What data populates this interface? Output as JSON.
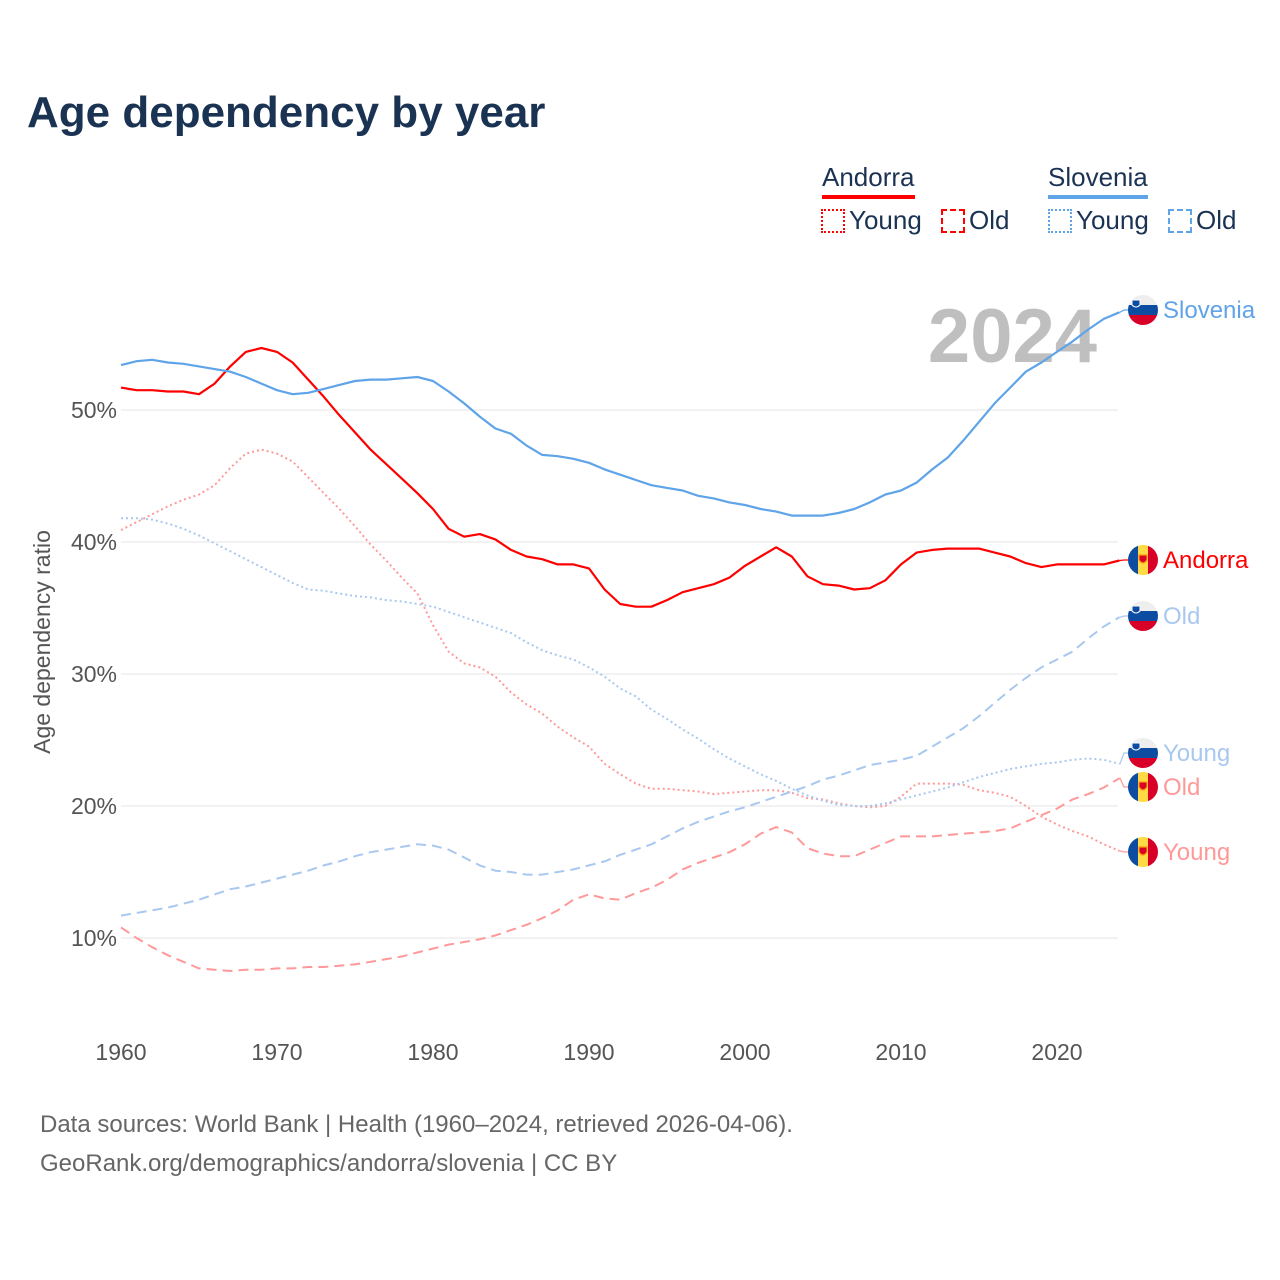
{
  "chart_data": {
    "type": "line",
    "title": "Age dependency by year",
    "xlabel": "",
    "ylabel": "Age dependency ratio",
    "xlim": [
      1960,
      2024
    ],
    "ylim": [
      4,
      58
    ],
    "yticks": [
      10,
      20,
      30,
      40,
      50
    ],
    "ytick_labels": [
      "10%",
      "20%",
      "30%",
      "40%",
      "50%"
    ],
    "xticks": [
      1960,
      1970,
      1980,
      1990,
      2000,
      2010,
      2020
    ],
    "xtick_labels": [
      "1960",
      "1970",
      "1980",
      "1990",
      "2000",
      "2010",
      "2020"
    ],
    "grid": "horizontal",
    "year_watermark": "2024",
    "legend": {
      "placement": "top-right",
      "groups": [
        {
          "country": "Andorra",
          "color": "#ff0000",
          "items": [
            {
              "label": "Young",
              "style": "dotted"
            },
            {
              "label": "Old",
              "style": "dashed"
            }
          ]
        },
        {
          "country": "Slovenia",
          "color": "#5fa4e8",
          "items": [
            {
              "label": "Young",
              "style": "dotted"
            },
            {
              "label": "Old",
              "style": "dashed"
            }
          ]
        }
      ]
    },
    "x_start": 1960,
    "series": [
      {
        "name": "Andorra",
        "end_label": "Andorra",
        "flag": "andorra",
        "color": "#ff0000",
        "style": "solid",
        "values": [
          51.7,
          51.5,
          51.5,
          51.4,
          51.4,
          51.2,
          52.0,
          53.3,
          54.4,
          54.7,
          54.4,
          53.6,
          52.3,
          51.0,
          49.6,
          48.3,
          47.0,
          45.9,
          44.8,
          43.7,
          42.5,
          41.0,
          40.4,
          40.6,
          40.2,
          39.4,
          38.9,
          38.7,
          38.3,
          38.3,
          38.0,
          36.4,
          35.3,
          35.1,
          35.1,
          35.6,
          36.2,
          36.5,
          36.8,
          37.3,
          38.2,
          38.9,
          39.6,
          38.9,
          37.4,
          36.8,
          36.7,
          36.4,
          36.5,
          37.1,
          38.3,
          39.2,
          39.4,
          39.5,
          39.5,
          39.5,
          39.2,
          38.9,
          38.4,
          38.1,
          38.3,
          38.3,
          38.3,
          38.3,
          38.6
        ]
      },
      {
        "name": "Slovenia",
        "end_label": "Slovenia",
        "flag": "slovenia",
        "color": "#5fa4e8",
        "style": "solid",
        "values": [
          53.4,
          53.7,
          53.8,
          53.6,
          53.5,
          53.3,
          53.1,
          52.9,
          52.5,
          52.0,
          51.5,
          51.2,
          51.3,
          51.6,
          51.9,
          52.2,
          52.3,
          52.3,
          52.4,
          52.5,
          52.2,
          51.4,
          50.5,
          49.5,
          48.6,
          48.2,
          47.3,
          46.6,
          46.5,
          46.3,
          46.0,
          45.5,
          45.1,
          44.7,
          44.3,
          44.1,
          43.9,
          43.5,
          43.3,
          43.0,
          42.8,
          42.5,
          42.3,
          42.0,
          42.0,
          42.0,
          42.2,
          42.5,
          43.0,
          43.6,
          43.9,
          44.5,
          45.5,
          46.4,
          47.7,
          49.1,
          50.5,
          51.7,
          52.9,
          53.6,
          54.4,
          55.2,
          56.1,
          56.9,
          57.4
        ]
      },
      {
        "name": "Andorra Young",
        "end_label": "Young",
        "flag": "andorra",
        "color": "#ff9999",
        "style": "dotted",
        "values": [
          40.9,
          41.5,
          42.1,
          42.7,
          43.2,
          43.6,
          44.3,
          45.6,
          46.7,
          47.0,
          46.7,
          46.1,
          44.9,
          43.7,
          42.5,
          41.2,
          39.8,
          38.6,
          37.3,
          36.1,
          33.7,
          31.7,
          30.8,
          30.5,
          29.8,
          28.6,
          27.7,
          27.0,
          26.0,
          25.2,
          24.5,
          23.2,
          22.4,
          21.7,
          21.3,
          21.3,
          21.2,
          21.1,
          20.9,
          21.0,
          21.1,
          21.2,
          21.2,
          21.0,
          20.6,
          20.5,
          20.2,
          20.0,
          19.9,
          20.0,
          20.7,
          21.7,
          21.7,
          21.7,
          21.6,
          21.2,
          21.0,
          20.7,
          20.0,
          19.2,
          18.6,
          18.1,
          17.7,
          17.1,
          16.6
        ]
      },
      {
        "name": "Andorra Old",
        "end_label": "Old",
        "flag": "andorra",
        "color": "#ff9999",
        "style": "dashed",
        "values": [
          10.8,
          10.0,
          9.3,
          8.7,
          8.2,
          7.7,
          7.6,
          7.5,
          7.6,
          7.6,
          7.7,
          7.7,
          7.8,
          7.8,
          7.9,
          8.0,
          8.2,
          8.4,
          8.6,
          8.9,
          9.2,
          9.5,
          9.7,
          9.9,
          10.2,
          10.6,
          11.0,
          11.5,
          12.1,
          12.9,
          13.3,
          13.0,
          12.9,
          13.4,
          13.8,
          14.4,
          15.2,
          15.7,
          16.1,
          16.5,
          17.1,
          17.9,
          18.4,
          18.0,
          16.8,
          16.4,
          16.2,
          16.2,
          16.7,
          17.2,
          17.7,
          17.7,
          17.7,
          17.8,
          17.9,
          18.0,
          18.1,
          18.3,
          18.8,
          19.3,
          19.8,
          20.5,
          20.9,
          21.4,
          22.1
        ]
      },
      {
        "name": "Slovenia Young",
        "end_label": "Young",
        "flag": "slovenia",
        "color": "#a8c8f0",
        "style": "dotted",
        "values": [
          41.8,
          41.8,
          41.7,
          41.4,
          41.0,
          40.5,
          39.9,
          39.3,
          38.7,
          38.1,
          37.5,
          36.9,
          36.4,
          36.3,
          36.1,
          35.9,
          35.8,
          35.6,
          35.5,
          35.3,
          35.1,
          34.7,
          34.3,
          33.9,
          33.5,
          33.1,
          32.4,
          31.8,
          31.4,
          31.1,
          30.5,
          29.8,
          28.9,
          28.3,
          27.3,
          26.6,
          25.8,
          25.1,
          24.3,
          23.6,
          23.0,
          22.4,
          21.9,
          21.3,
          20.8,
          20.4,
          20.1,
          20.0,
          20.0,
          20.2,
          20.5,
          20.8,
          21.1,
          21.4,
          21.8,
          22.2,
          22.5,
          22.8,
          23.0,
          23.2,
          23.3,
          23.5,
          23.6,
          23.5,
          23.2
        ]
      },
      {
        "name": "Slovenia Old",
        "end_label": "Old",
        "flag": "slovenia",
        "color": "#a8c8f0",
        "style": "dashed",
        "values": [
          11.7,
          11.9,
          12.1,
          12.3,
          12.6,
          12.9,
          13.3,
          13.7,
          13.9,
          14.2,
          14.5,
          14.8,
          15.1,
          15.5,
          15.8,
          16.2,
          16.5,
          16.7,
          16.9,
          17.1,
          17.0,
          16.7,
          16.1,
          15.5,
          15.1,
          15.0,
          14.8,
          14.8,
          15.0,
          15.2,
          15.5,
          15.8,
          16.3,
          16.7,
          17.1,
          17.7,
          18.3,
          18.8,
          19.2,
          19.6,
          19.9,
          20.3,
          20.7,
          21.1,
          21.5,
          22.0,
          22.3,
          22.7,
          23.1,
          23.3,
          23.5,
          23.8,
          24.5,
          25.2,
          25.9,
          26.8,
          27.8,
          28.8,
          29.7,
          30.5,
          31.1,
          31.7,
          32.7,
          33.6,
          34.3
        ]
      }
    ]
  },
  "footer": {
    "line1": "Data sources: World Bank | Health (1960–2024, retrieved 2026-04-06).",
    "line2": "GeoRank.org/demographics/andorra/slovenia | CC BY"
  }
}
